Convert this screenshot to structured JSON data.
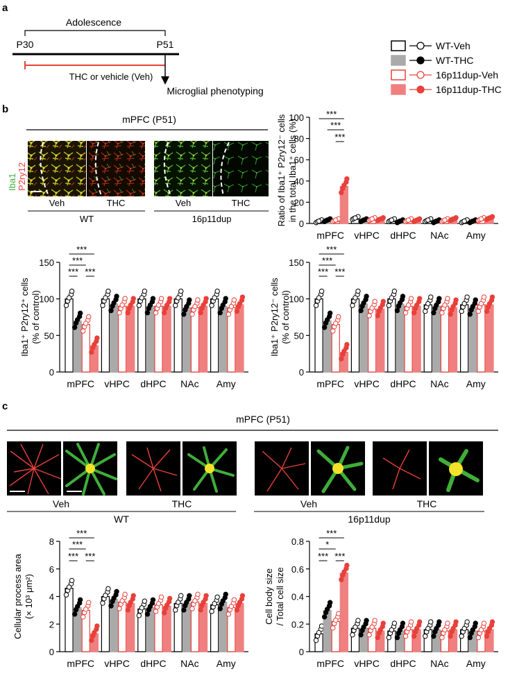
{
  "panels": {
    "a": "a",
    "b": "b",
    "c": "c"
  },
  "timeline": {
    "adolescence": "Adolescence",
    "start": "P30",
    "end": "P51",
    "treatment": "THC or vehicle (Veh)",
    "endpoint": "Microglial phenotyping"
  },
  "legend": [
    {
      "name": "WT-Veh",
      "fill": "#ffffff",
      "stroke": "#000000",
      "dot_fill": "#ffffff"
    },
    {
      "name": "WT-THC",
      "fill": "#aaaaaa",
      "stroke": "#aaaaaa",
      "dot_fill": "#000000"
    },
    {
      "name": "16p11dup-Veh",
      "fill": "#ffffff",
      "stroke": "#e8403a",
      "dot_fill": "#ffffff"
    },
    {
      "name": "16p11dup-THC",
      "fill": "#f08080",
      "stroke": "#f08080",
      "dot_fill": "#e8403a"
    }
  ],
  "images_b": {
    "title": "mPFC (P51)",
    "stain_iba1": "Iba1",
    "stain_p2ry12": "P2ry12",
    "wt_veh": "Veh",
    "wt_thc": "THC",
    "wt": "WT",
    "dup_veh": "Veh",
    "dup_thc": "THC",
    "dup": "16p11dup"
  },
  "images_c": {
    "title": "mPFC (P51)",
    "wt_veh": "Veh",
    "wt_thc": "THC",
    "wt": "WT",
    "dup_veh": "Veh",
    "dup_thc": "THC",
    "dup": "16p11dup"
  },
  "colors": {
    "red": "#e8403a",
    "pink": "#f08080",
    "gray": "#aaaaaa",
    "green": "#3fae3a"
  },
  "chart_data": [
    {
      "id": "b-ratio",
      "type": "bar",
      "ylabel_lines": [
        "Ratio of Iba1⁺ P2ry12⁻ cells",
        "in the total Iba1⁺ cells (%)"
      ],
      "ylim": [
        0,
        100
      ],
      "yticks": [
        0,
        20,
        40,
        60,
        80,
        100
      ],
      "categories": [
        "mPFC",
        "vHPC",
        "dHPC",
        "NAc",
        "Amy"
      ],
      "series": [
        {
          "values": [
            2,
            5,
            3,
            3,
            2
          ]
        },
        {
          "values": [
            3,
            3,
            2,
            2,
            2
          ]
        },
        {
          "values": [
            3,
            4,
            3,
            3,
            4
          ]
        },
        {
          "values": [
            35,
            4,
            3,
            4,
            5
          ]
        }
      ],
      "significance": [
        "***",
        "***",
        "***"
      ]
    },
    {
      "id": "b-p2ry12pos",
      "type": "bar",
      "ylabel_lines": [
        "Iba1⁺ P2ry12⁺ cells",
        "(% of control)"
      ],
      "ylim": [
        0,
        150
      ],
      "yticks": [
        0,
        50,
        100,
        150
      ],
      "categories": [
        "mPFC",
        "vHPC",
        "dHPC",
        "NAc",
        "Amy"
      ],
      "series": [
        {
          "values": [
            100,
            100,
            100,
            100,
            100
          ]
        },
        {
          "values": [
            70,
            93,
            90,
            88,
            90
          ]
        },
        {
          "values": [
            65,
            90,
            90,
            88,
            88
          ]
        },
        {
          "values": [
            36,
            90,
            90,
            90,
            92
          ]
        }
      ],
      "significance": [
        "***",
        "***",
        "***",
        "***",
        "***"
      ]
    },
    {
      "id": "b-p2ry12neg",
      "type": "bar",
      "ylabel_lines": [
        "Iba1⁺ P2ry12⁻ cells",
        "(% of control)"
      ],
      "ylim": [
        0,
        150
      ],
      "yticks": [
        0,
        50,
        100,
        150
      ],
      "categories": [
        "mPFC",
        "vHPC",
        "dHPC",
        "NAc",
        "Amy"
      ],
      "series": [
        {
          "values": [
            100,
            100,
            100,
            92,
            92
          ]
        },
        {
          "values": [
            70,
            93,
            93,
            90,
            88
          ]
        },
        {
          "values": [
            65,
            86,
            90,
            90,
            92
          ]
        },
        {
          "values": [
            27,
            86,
            90,
            88,
            92
          ]
        }
      ],
      "significance": [
        "***",
        "***",
        "***",
        "***",
        "***"
      ]
    },
    {
      "id": "c-area",
      "type": "bar",
      "ylabel_lines": [
        "Cellular process area",
        "(× 10³ μm²)"
      ],
      "ylim": [
        0,
        8
      ],
      "yticks": [
        0,
        2,
        4,
        6,
        8
      ],
      "categories": [
        "mPFC",
        "vHPC",
        "dHPC",
        "NAc",
        "Amy"
      ],
      "series": [
        {
          "values": [
            4.6,
            4.0,
            3.1,
            3.5,
            3.4
          ]
        },
        {
          "values": [
            3.2,
            3.8,
            3.2,
            3.5,
            3.6
          ]
        },
        {
          "values": [
            3.0,
            3.6,
            3.4,
            3.6,
            3.2
          ]
        },
        {
          "values": [
            1.3,
            3.5,
            3.3,
            3.5,
            3.5
          ]
        }
      ],
      "significance": [
        "***",
        "***",
        "***",
        "***",
        "***"
      ]
    },
    {
      "id": "c-body",
      "type": "bar",
      "ylabel_lines": [
        "Cell body size",
        "/ Total cell size"
      ],
      "ylim": [
        0,
        0.8
      ],
      "yticks": [
        0,
        0.2,
        0.4,
        0.6,
        0.8
      ],
      "categories": [
        "mPFC",
        "vHPC",
        "dHPC",
        "NAc",
        "Amy"
      ],
      "series": [
        {
          "values": [
            0.13,
            0.17,
            0.15,
            0.16,
            0.16
          ]
        },
        {
          "values": [
            0.3,
            0.17,
            0.15,
            0.16,
            0.15
          ]
        },
        {
          "values": [
            0.22,
            0.17,
            0.16,
            0.15,
            0.15
          ]
        },
        {
          "values": [
            0.57,
            0.15,
            0.16,
            0.16,
            0.16
          ]
        }
      ],
      "significance": [
        "***",
        "*",
        "***",
        "***",
        "***"
      ]
    }
  ]
}
